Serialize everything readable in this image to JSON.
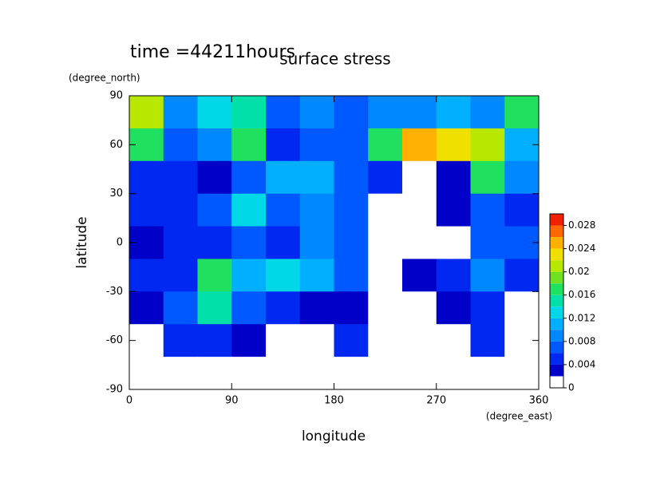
{
  "chart_data": {
    "type": "contour",
    "title": "surface stress",
    "subtitle": "time =44211hours",
    "x_label": "longitude",
    "x_unit": "(degree_east)",
    "y_label": "latitude",
    "y_unit": "(degree_north)",
    "xlim": [
      0,
      360
    ],
    "xticks": [
      0,
      90,
      180,
      270,
      360
    ],
    "ylim": [
      -90,
      90
    ],
    "yticks": [
      -90,
      -60,
      -30,
      0,
      30,
      60,
      90
    ],
    "lon_edges": [
      0,
      30,
      60,
      90,
      120,
      150,
      180,
      210,
      240,
      270,
      300,
      330,
      360
    ],
    "lat_edges": [
      90,
      70,
      50,
      30,
      10,
      -10,
      -30,
      -50,
      -70,
      -90
    ],
    "field": [
      [
        0.02,
        0.008,
        0.012,
        0.014,
        0.006,
        0.008,
        0.006,
        0.008,
        0.008,
        0.01,
        0.008,
        0.016
      ],
      [
        0.016,
        0.006,
        0.008,
        0.016,
        0.004,
        0.006,
        0.006,
        0.016,
        0.024,
        0.022,
        0.02,
        0.01
      ],
      [
        0.004,
        0.004,
        0.002,
        0.006,
        0.01,
        0.01,
        0.006,
        0.004,
        0.001,
        0.002,
        0.016,
        0.008
      ],
      [
        0.004,
        0.004,
        0.006,
        0.012,
        0.006,
        0.008,
        0.006,
        0.001,
        0.001,
        0.002,
        0.006,
        0.004
      ],
      [
        0.002,
        0.004,
        0.004,
        0.006,
        0.004,
        0.008,
        0.006,
        0.001,
        0.001,
        0.001,
        0.006,
        0.006
      ],
      [
        0.004,
        0.004,
        0.016,
        0.01,
        0.012,
        0.01,
        0.006,
        0.001,
        0.002,
        0.004,
        0.008,
        0.004
      ],
      [
        0.003,
        0.006,
        0.014,
        0.006,
        0.004,
        0.003,
        0.003,
        0.001,
        0.001,
        0.003,
        0.004,
        0.001
      ],
      [
        0.001,
        0.004,
        0.004,
        0.003,
        0.001,
        0.001,
        0.004,
        0.001,
        0.001,
        0.001,
        0.004,
        0.001
      ],
      [
        0,
        0,
        0,
        0,
        0,
        0,
        0,
        0,
        0,
        0,
        0,
        0
      ]
    ],
    "levels": [
      0,
      0.002,
      0.004,
      0.006,
      0.008,
      0.01,
      0.012,
      0.014,
      0.016,
      0.018,
      0.02,
      0.022,
      0.024,
      0.026,
      0.028,
      0.03
    ],
    "colors": [
      "#ffffff",
      "#0000c8",
      "#0028f0",
      "#0058ff",
      "#0088ff",
      "#00b0ff",
      "#00d8e8",
      "#00e0a8",
      "#20e060",
      "#70e020",
      "#b8e800",
      "#f0e000",
      "#ffb000",
      "#ff6800",
      "#f02000"
    ],
    "colorbar_ticks": [
      0,
      0.004,
      0.008,
      0.012,
      0.016,
      0.02,
      0.024,
      0.028
    ]
  }
}
